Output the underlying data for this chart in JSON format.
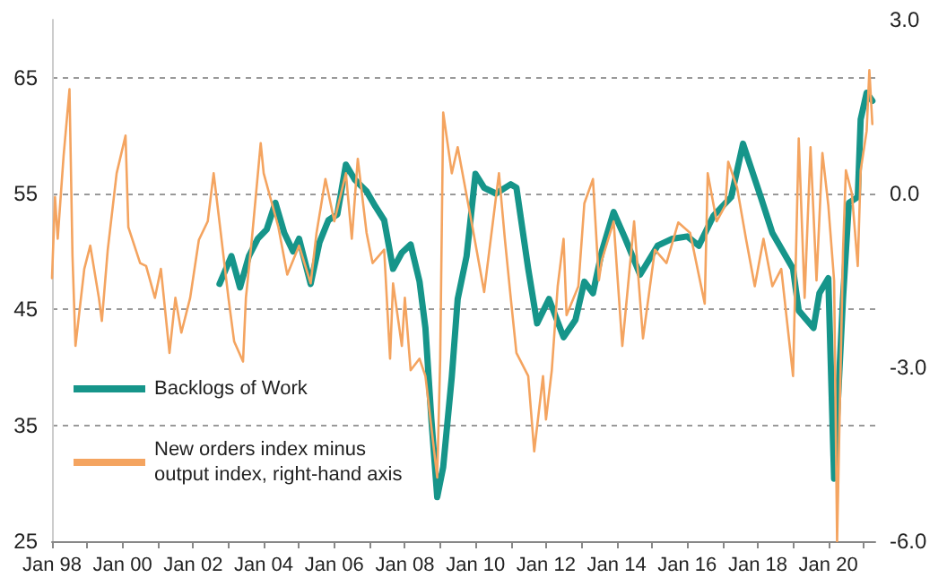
{
  "chart_data": {
    "type": "line",
    "series": [
      {
        "name": "Backlogs of Work",
        "color": "#16958a",
        "x": [
          "2002-10",
          "2003-02",
          "2003-05",
          "2003-08",
          "2003-11",
          "2004-02",
          "2004-05",
          "2004-08",
          "2004-11",
          "2005-01",
          "2005-05",
          "2005-08",
          "2005-11",
          "2006-02",
          "2006-05",
          "2006-08",
          "2006-12",
          "2007-03",
          "2007-06",
          "2007-09",
          "2007-12",
          "2008-03",
          "2008-06",
          "2008-08",
          "2008-10",
          "2008-12",
          "2009-02",
          "2009-05",
          "2009-07",
          "2009-10",
          "2010-01",
          "2010-04",
          "2010-08",
          "2011-01",
          "2011-03",
          "2011-07",
          "2011-10",
          "2012-02",
          "2012-07",
          "2012-11",
          "2013-02",
          "2013-05",
          "2013-08",
          "2013-12",
          "2014-04",
          "2014-09",
          "2015-03",
          "2015-08",
          "2016-01",
          "2016-05",
          "2016-10",
          "2017-04",
          "2017-08",
          "2018-02",
          "2018-06",
          "2019-01",
          "2019-03",
          "2019-08",
          "2019-10",
          "2020-01",
          "2020-03",
          "2020-06",
          "2020-08",
          "2020-11",
          "2020-12",
          "2021-02",
          "2021-04"
        ],
        "values": [
          47.2,
          49.6,
          46.9,
          49.6,
          51.1,
          51.9,
          54.2,
          51.6,
          50.0,
          51.1,
          47.2,
          50.8,
          52.7,
          53.2,
          57.5,
          56.2,
          55.2,
          53.9,
          52.7,
          48.5,
          49.9,
          50.6,
          47.4,
          43.4,
          35.6,
          28.8,
          31.4,
          39.2,
          45.9,
          49.6,
          56.7,
          55.5,
          55.0,
          55.8,
          55.5,
          48.5,
          43.8,
          45.9,
          42.6,
          44.1,
          47.4,
          46.4,
          50.0,
          53.4,
          51.1,
          48.0,
          50.5,
          51.1,
          51.3,
          50.5,
          53.1,
          54.7,
          59.3,
          54.7,
          51.6,
          48.5,
          44.9,
          43.4,
          46.4,
          47.7,
          30.4,
          45.9,
          54.2,
          54.7,
          61.4,
          63.7,
          63.0
        ]
      },
      {
        "name": "New orders index minus output index, right-hand axis",
        "color": "#f4a460",
        "axis": "y2",
        "x": [
          "1998-01",
          "1998-02",
          "1998-03",
          "1998-05",
          "1998-07",
          "1998-08",
          "1998-09",
          "1998-12",
          "1999-02",
          "1999-05",
          "1999-06",
          "1999-08",
          "1999-11",
          "2000-02",
          "2000-03",
          "2000-07",
          "2000-09",
          "2000-12",
          "2001-02",
          "2001-05",
          "2001-07",
          "2001-09",
          "2001-12",
          "2002-03",
          "2002-06",
          "2002-08",
          "2002-10",
          "2003-01",
          "2003-03",
          "2003-06",
          "2003-07",
          "2003-09",
          "2003-12",
          "2004-01",
          "2004-06",
          "2004-09",
          "2005-01",
          "2005-05",
          "2005-07",
          "2005-10",
          "2006-01",
          "2006-05",
          "2006-07",
          "2006-09",
          "2006-12",
          "2007-02",
          "2007-06",
          "2007-08",
          "2007-09",
          "2007-12",
          "2008-01",
          "2008-03",
          "2008-06",
          "2008-08",
          "2008-12",
          "2009-01",
          "2009-02",
          "2009-05",
          "2009-07",
          "2009-12",
          "2010-04",
          "2010-09",
          "2010-11",
          "2011-01",
          "2011-03",
          "2011-07",
          "2011-09",
          "2011-12",
          "2012-01",
          "2012-03",
          "2012-05",
          "2012-07",
          "2012-08",
          "2012-12",
          "2013-02",
          "2013-05",
          "2013-07",
          "2013-08",
          "2013-12",
          "2014-03",
          "2014-07",
          "2014-10",
          "2015-02",
          "2015-06",
          "2015-10",
          "2016-02",
          "2016-07",
          "2016-08",
          "2016-11",
          "2017-02",
          "2017-03",
          "2017-06",
          "2017-09",
          "2017-12",
          "2018-03",
          "2018-06",
          "2018-09",
          "2019-01",
          "2019-03",
          "2019-05",
          "2019-07",
          "2019-09",
          "2019-11",
          "2020-01",
          "2020-03",
          "2020-04",
          "2020-06",
          "2020-07",
          "2020-09",
          "2020-11",
          "2020-12",
          "2021-02",
          "2021-03",
          "2021-04"
        ],
        "values": [
          -1.46,
          -0.06,
          -0.78,
          0.65,
          1.8,
          -1.08,
          -2.63,
          -1.3,
          -0.9,
          -1.8,
          -2.2,
          -0.97,
          0.35,
          1.0,
          -0.58,
          -1.2,
          -1.25,
          -1.8,
          -1.3,
          -2.75,
          -1.8,
          -2.4,
          -1.8,
          -0.8,
          -0.48,
          0.35,
          -0.5,
          -1.8,
          -2.55,
          -2.9,
          -1.8,
          -0.78,
          0.87,
          0.35,
          -0.58,
          -1.4,
          -0.9,
          -1.55,
          -0.68,
          0.25,
          -0.48,
          0.35,
          -0.78,
          0.6,
          -0.68,
          -1.2,
          -0.97,
          -2.85,
          -1.55,
          -2.63,
          -1.8,
          -3.05,
          -2.85,
          -3.15,
          -4.9,
          -2.85,
          1.4,
          0.35,
          0.8,
          -0.58,
          -1.7,
          0.35,
          -0.78,
          -1.8,
          -2.75,
          -3.15,
          -4.45,
          -3.15,
          -3.9,
          -3.05,
          -1.6,
          -0.78,
          -2.1,
          -1.6,
          -0.17,
          0.25,
          -1.5,
          -1.15,
          -0.48,
          -2.63,
          -0.48,
          -2.5,
          -0.97,
          -1.2,
          -0.5,
          -0.68,
          -1.9,
          0.35,
          -0.48,
          -0.2,
          0.55,
          0.1,
          -0.78,
          -1.6,
          -0.78,
          -1.6,
          -1.3,
          -3.15,
          0.95,
          -1.8,
          0.8,
          -1.5,
          0.7,
          -0.2,
          -1.5,
          -6.0,
          -1.0,
          0.4,
          0.0,
          -1.25,
          0.4,
          1.08,
          2.13,
          1.2
        ]
      }
    ],
    "xlim": [
      "1998-01",
      "2021-05"
    ],
    "xticks": [
      {
        "value": "1998-01",
        "label": "Jan 98"
      },
      {
        "value": "1999-01",
        "label": null
      },
      {
        "value": "2000-01",
        "label": "Jan 00"
      },
      {
        "value": "2001-01",
        "label": null
      },
      {
        "value": "2002-01",
        "label": "Jan 02"
      },
      {
        "value": "2003-01",
        "label": null
      },
      {
        "value": "2004-01",
        "label": "Jan 04"
      },
      {
        "value": "2005-01",
        "label": null
      },
      {
        "value": "2006-01",
        "label": "Jan 06"
      },
      {
        "value": "2007-01",
        "label": null
      },
      {
        "value": "2008-01",
        "label": "Jan 08"
      },
      {
        "value": "2009-01",
        "label": null
      },
      {
        "value": "2010-01",
        "label": "Jan 10"
      },
      {
        "value": "2011-01",
        "label": null
      },
      {
        "value": "2012-01",
        "label": "Jan 12"
      },
      {
        "value": "2013-01",
        "label": null
      },
      {
        "value": "2014-01",
        "label": "Jan 14"
      },
      {
        "value": "2015-01",
        "label": null
      },
      {
        "value": "2016-01",
        "label": "Jan 16"
      },
      {
        "value": "2017-01",
        "label": null
      },
      {
        "value": "2018-01",
        "label": "Jan 18"
      },
      {
        "value": "2019-01",
        "label": null
      },
      {
        "value": "2020-01",
        "label": "Jan 20"
      },
      {
        "value": "2021-01",
        "label": null
      }
    ],
    "ylim": [
      25,
      70
    ],
    "yticks": [
      25,
      35,
      45,
      55,
      65
    ],
    "y2lim": [
      -6,
      3
    ],
    "y2ticks": [
      {
        "value": -6,
        "label": "-6.0"
      },
      {
        "value": -3,
        "label": "-3.0"
      },
      {
        "value": 0,
        "label": "0.0"
      },
      {
        "value": 3,
        "label": "3.0"
      }
    ],
    "grid": "y",
    "legend": "left",
    "marker": "none",
    "line_style": "solid"
  }
}
